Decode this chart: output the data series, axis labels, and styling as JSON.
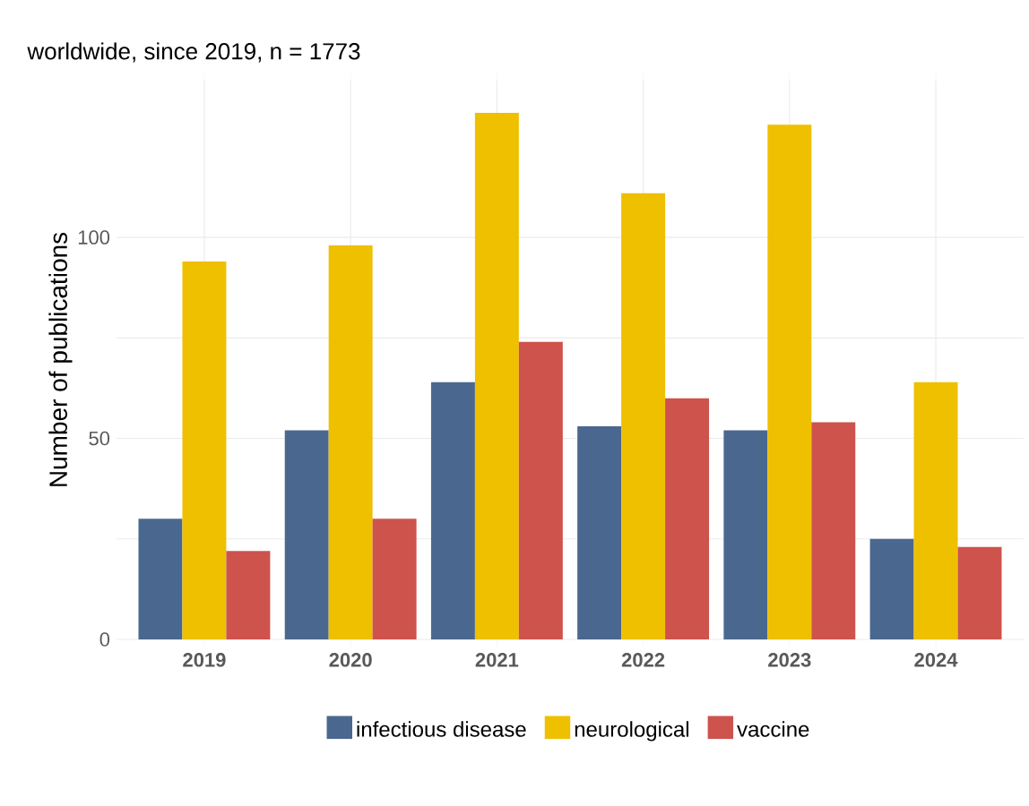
{
  "chart_data": {
    "type": "bar",
    "title": "worldwide, since 2019, n = 1773",
    "ylabel": "Number of publications",
    "categories": [
      "2019",
      "2020",
      "2021",
      "2022",
      "2023",
      "2024"
    ],
    "series": [
      {
        "name": "infectious disease",
        "color": "#4a688f",
        "values": [
          30,
          52,
          64,
          53,
          52,
          25
        ]
      },
      {
        "name": "neurological",
        "color": "#eec000",
        "values": [
          94,
          98,
          131,
          111,
          128,
          64
        ]
      },
      {
        "name": "vaccine",
        "color": "#cd534c",
        "values": [
          22,
          30,
          74,
          60,
          54,
          23
        ]
      }
    ],
    "ylim": [
      0,
      139
    ],
    "yticks": [
      0,
      50,
      100
    ],
    "grid": true,
    "legend": "bottom"
  }
}
